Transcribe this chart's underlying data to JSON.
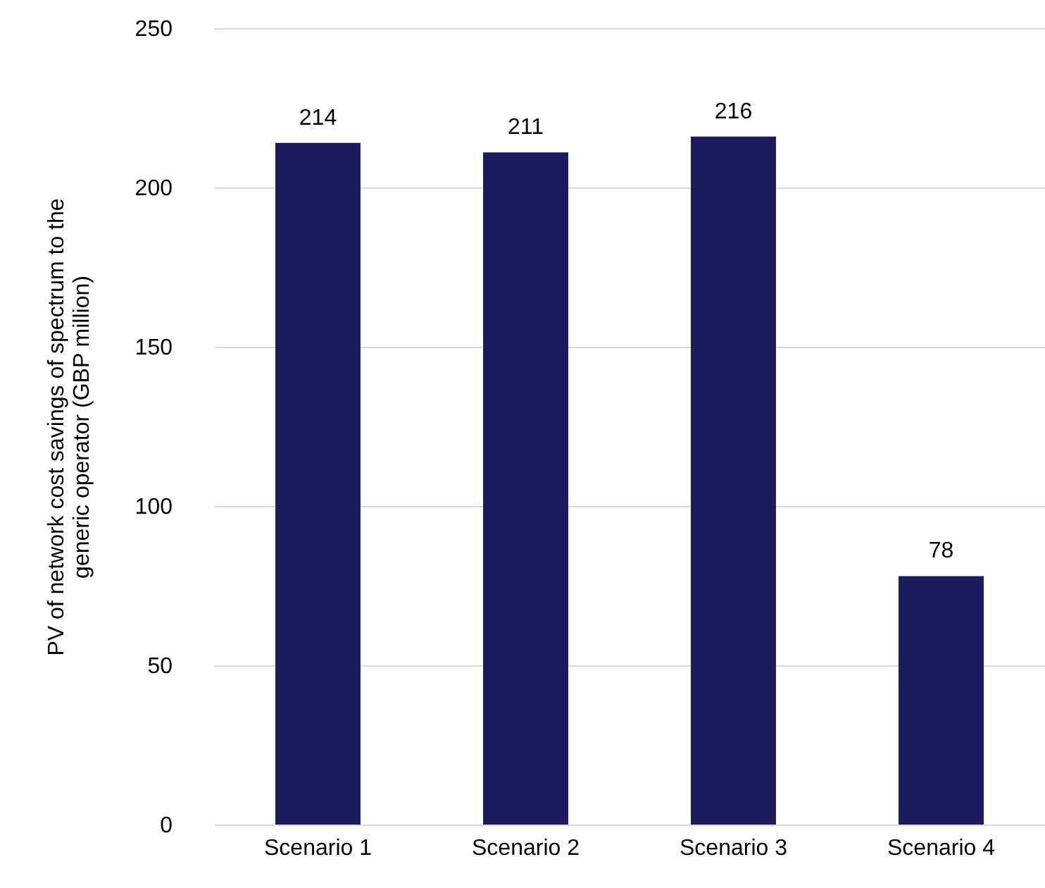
{
  "chart_data": {
    "type": "bar",
    "ylabel": "PV of network cost savings of spectrum to the generic operator (GBP million)",
    "categories": [
      "Scenario 1",
      "Scenario 2",
      "Scenario 3",
      "Scenario 4"
    ],
    "values": [
      214,
      211,
      216,
      78
    ],
    "color": "#1c1c5c",
    "ylim": [
      0,
      250
    ],
    "yticks": [
      0,
      50,
      100,
      150,
      200,
      250
    ],
    "grid": "y",
    "data_labels": true
  }
}
